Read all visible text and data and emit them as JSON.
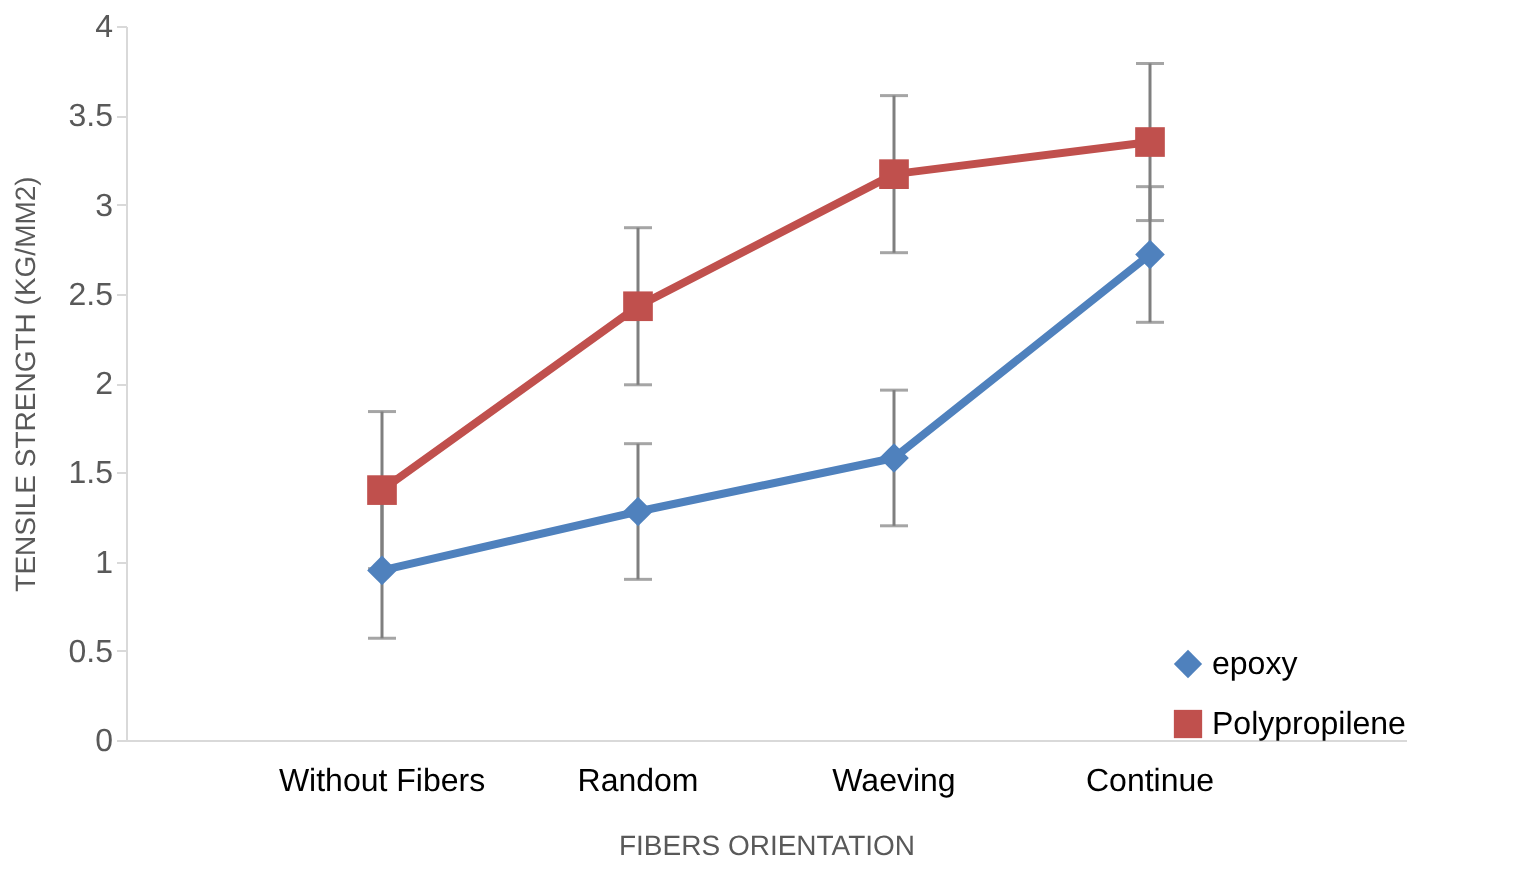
{
  "chart_data": {
    "type": "line",
    "xlabel": "FIBERS ORIENTATION",
    "ylabel": "TENSILE STRENGTH (KG/MM2)",
    "categories": [
      "Without Fibers",
      "Random",
      "Waeving",
      "Continue"
    ],
    "series": [
      {
        "name": "epoxy",
        "color": "#4f81bd",
        "marker": "diamond",
        "values": [
          0.95,
          1.28,
          1.58,
          2.72
        ],
        "errors": [
          0.38,
          0.38,
          0.38,
          0.38
        ]
      },
      {
        "name": "Polypropilene",
        "color": "#c0504d",
        "marker": "square",
        "values": [
          1.4,
          2.43,
          3.17,
          3.35
        ],
        "errors": [
          0.44,
          0.44,
          0.44,
          0.44
        ]
      }
    ],
    "ylim": [
      0,
      4
    ],
    "yticks": [
      0,
      0.5,
      1,
      1.5,
      2,
      2.5,
      3,
      3.5,
      4
    ],
    "grid": false,
    "legend": "bottom right",
    "line_style": "solid"
  }
}
